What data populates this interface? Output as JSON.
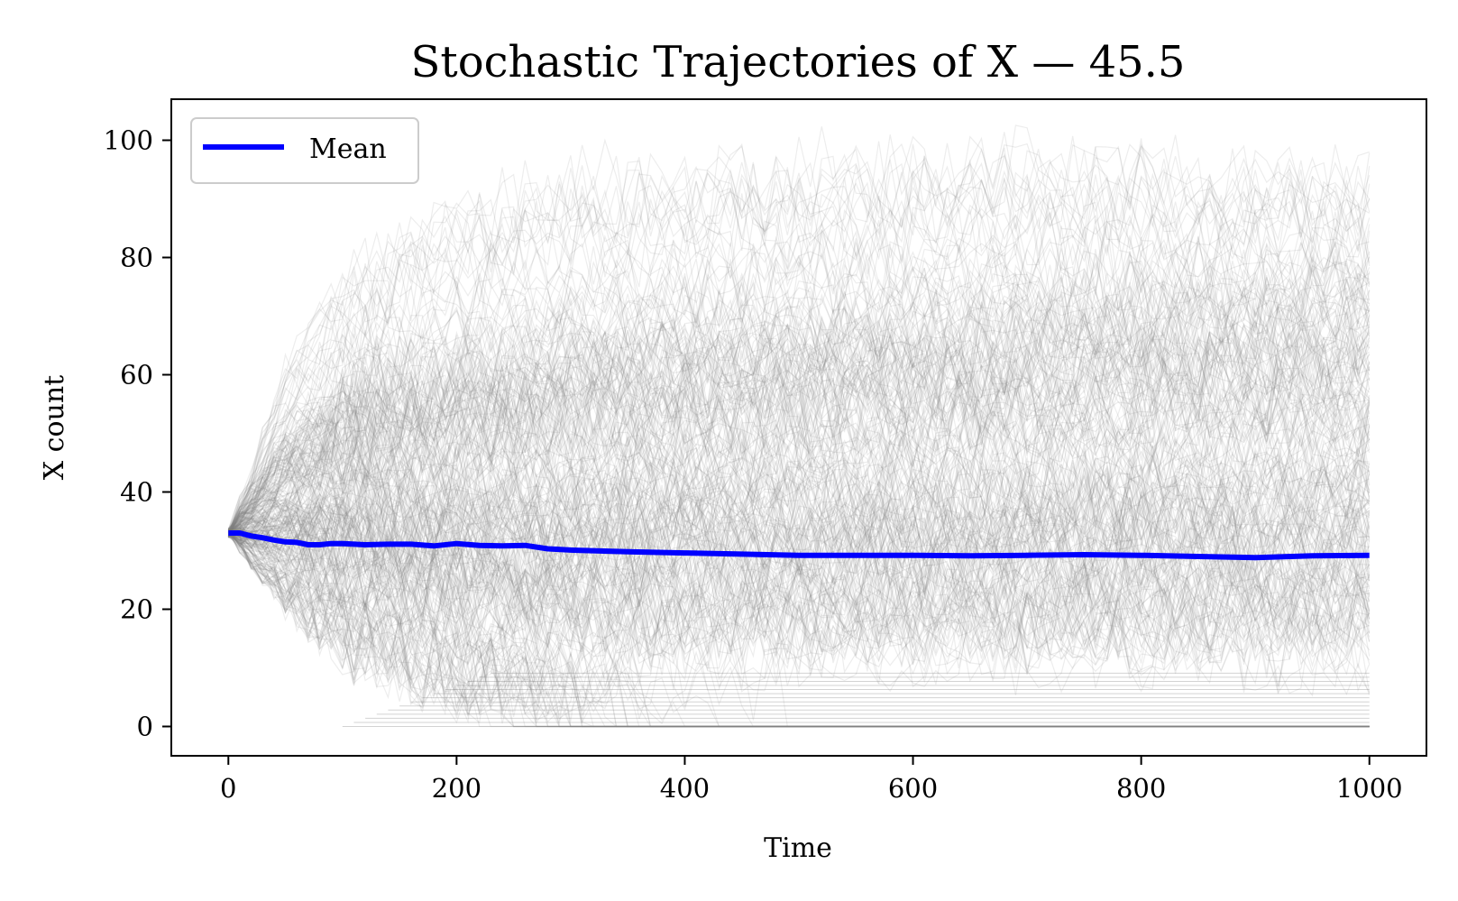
{
  "chart_data": {
    "type": "line",
    "title": "Stochastic Trajectories of X — 45.5",
    "xlabel": "Time",
    "ylabel": "X count",
    "xlim": [
      -50,
      1050
    ],
    "ylim": [
      -5,
      107
    ],
    "xticks": [
      0,
      200,
      400,
      600,
      800,
      1000
    ],
    "yticks": [
      0,
      20,
      40,
      60,
      80,
      100
    ],
    "grid": false,
    "legend": {
      "placement": "upper-left",
      "entries": [
        "Mean"
      ]
    },
    "colors": {
      "mean": "#0000ff",
      "trajectories": "#808080"
    },
    "trajectories": {
      "count_estimate": 1000,
      "initial_value": 33,
      "upper_envelope": {
        "x": [
          0,
          50,
          100,
          200,
          300,
          500,
          700,
          1000
        ],
        "y": [
          33,
          60,
          75,
          88,
          92,
          95,
          96,
          92
        ]
      },
      "dense_band_upper": {
        "x": [
          0,
          50,
          100,
          200,
          300,
          500,
          700,
          1000
        ],
        "y": [
          33,
          50,
          60,
          67,
          71,
          75,
          77,
          80
        ]
      },
      "dense_band_lower": {
        "x": [
          0,
          50,
          100,
          200,
          300,
          500,
          700,
          1000
        ],
        "y": [
          33,
          22,
          15,
          8,
          4,
          2,
          1,
          0
        ]
      },
      "absorbing_value": 0
    },
    "series": [
      {
        "name": "Mean",
        "x": [
          0,
          10,
          20,
          30,
          40,
          50,
          60,
          70,
          80,
          90,
          100,
          120,
          140,
          160,
          180,
          200,
          220,
          240,
          260,
          280,
          300,
          350,
          400,
          450,
          500,
          550,
          600,
          650,
          700,
          750,
          800,
          850,
          900,
          950,
          1000
        ],
        "y": [
          33.0,
          33.0,
          32.5,
          32.2,
          31.8,
          31.5,
          31.4,
          31.0,
          31.0,
          31.2,
          31.2,
          31.0,
          31.1,
          31.1,
          30.8,
          31.2,
          30.9,
          30.8,
          30.9,
          30.3,
          30.1,
          29.8,
          29.6,
          29.4,
          29.2,
          29.2,
          29.2,
          29.1,
          29.2,
          29.3,
          29.2,
          29.0,
          28.8,
          29.1,
          29.2
        ]
      }
    ]
  }
}
